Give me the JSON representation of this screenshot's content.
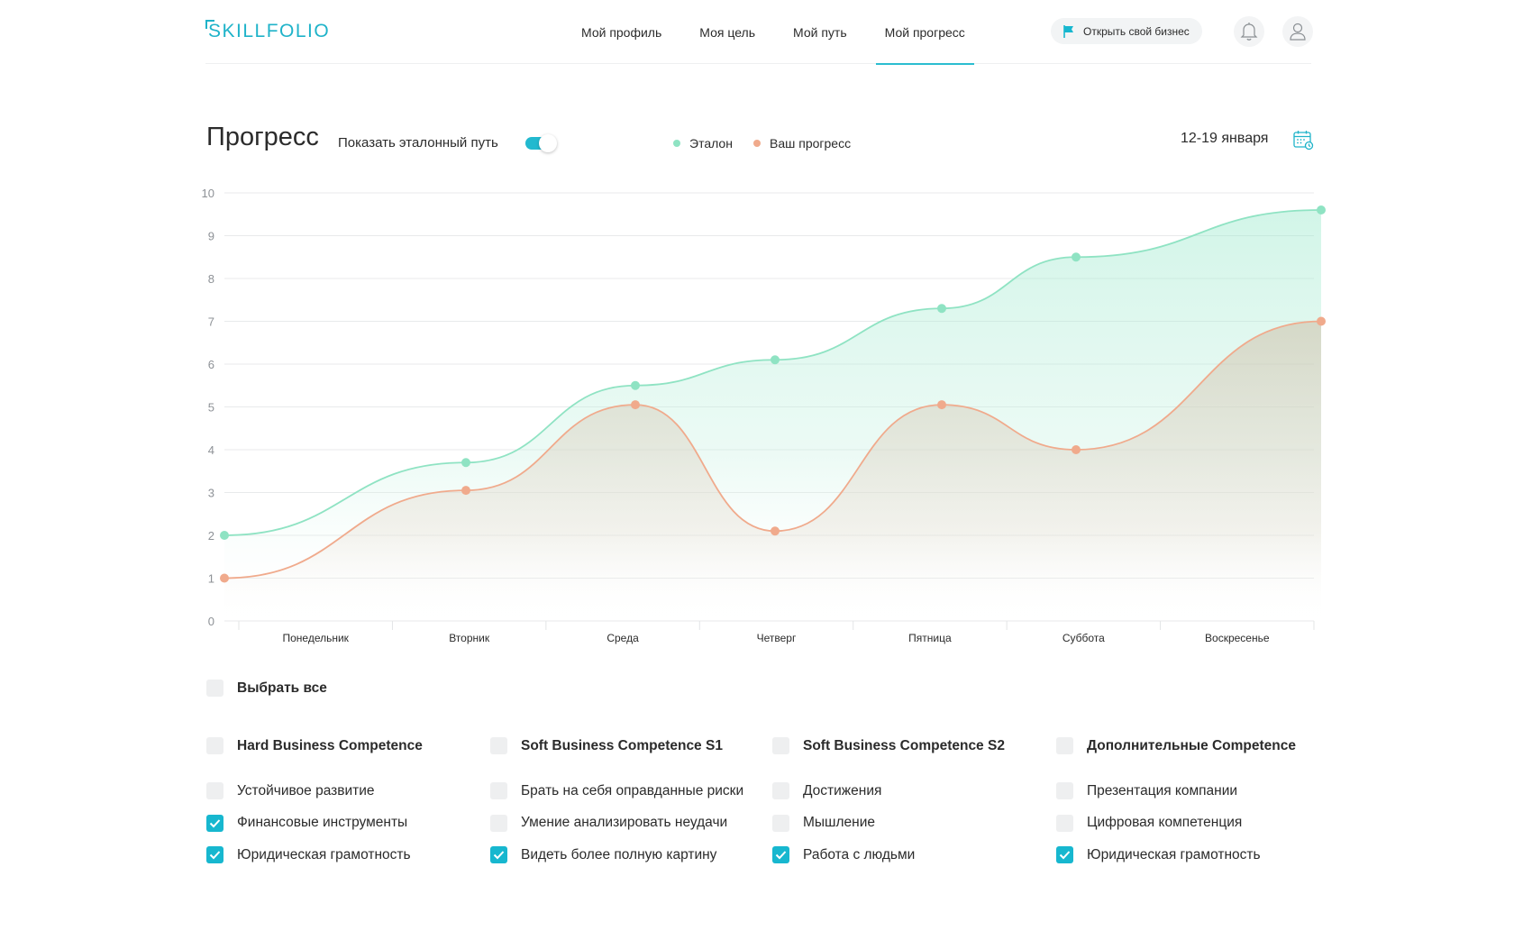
{
  "logo": "SKILLFOLIO",
  "nav": [
    "Мой профиль",
    "Моя цель",
    "Мой путь",
    "Мой прогресс"
  ],
  "nav_active_index": 3,
  "business_button": "Открыть свой бизнес",
  "icons": {
    "flag": "flag-icon",
    "bell": "bell-icon",
    "user": "user-icon",
    "calendar": "calendar-icon"
  },
  "colors": {
    "accent": "#1fb3c9",
    "benchmark": "#8fe3c3",
    "progress": "#f0aa8c"
  },
  "progress": {
    "title": "Прогресс",
    "show_label": "Показать эталонный путь",
    "toggle_on": true,
    "legend": [
      "Эталон",
      "Ваш прогресс"
    ],
    "date": "12-19 января"
  },
  "chart_data": {
    "type": "area",
    "y_ticks": [
      "0",
      "1",
      "2",
      "3",
      "4",
      "5",
      "6",
      "7",
      "8",
      "9",
      "10"
    ],
    "ylim": [
      0,
      10
    ],
    "categories": [
      "Понедельник",
      "Вторник",
      "Среда",
      "Четверг",
      "Пятница",
      "Суббота",
      "Воскресенье"
    ],
    "grid": true,
    "legend_position": "top",
    "series": [
      {
        "name": "Эталон",
        "color": "#8fe3c3",
        "values": [
          2,
          3.7,
          5.5,
          6.1,
          7.3,
          8.5,
          9.6
        ]
      },
      {
        "name": "Ваш прогресс",
        "color": "#f0aa8c",
        "values": [
          1,
          3.05,
          5.05,
          2.1,
          5.05,
          4,
          7
        ]
      }
    ]
  },
  "select_all": {
    "label": "Выбрать все",
    "checked": false
  },
  "columns": [
    {
      "header": "Hard Business Competence",
      "items": [
        {
          "label": "Устойчивое развитие",
          "checked": false
        },
        {
          "label": "Финансовые инструменты",
          "checked": true
        },
        {
          "label": "Юридическая грамотность",
          "checked": true
        }
      ]
    },
    {
      "header": "Soft Business Competence S1",
      "items": [
        {
          "label": "Брать на себя оправданные риски",
          "checked": false
        },
        {
          "label": "Умение анализировать неудачи",
          "checked": false
        },
        {
          "label": "Видеть более полную картину",
          "checked": true
        }
      ]
    },
    {
      "header": "Soft Business Competence S2",
      "items": [
        {
          "label": "Достижения",
          "checked": false
        },
        {
          "label": "Мышление",
          "checked": false
        },
        {
          "label": "Работа с людьми",
          "checked": true
        }
      ]
    },
    {
      "header": "Дополнительные Competence",
      "items": [
        {
          "label": "Презентация компании",
          "checked": false
        },
        {
          "label": "Цифровая компетенция",
          "checked": false
        },
        {
          "label": "Юридическая грамотность",
          "checked": true
        }
      ]
    }
  ]
}
